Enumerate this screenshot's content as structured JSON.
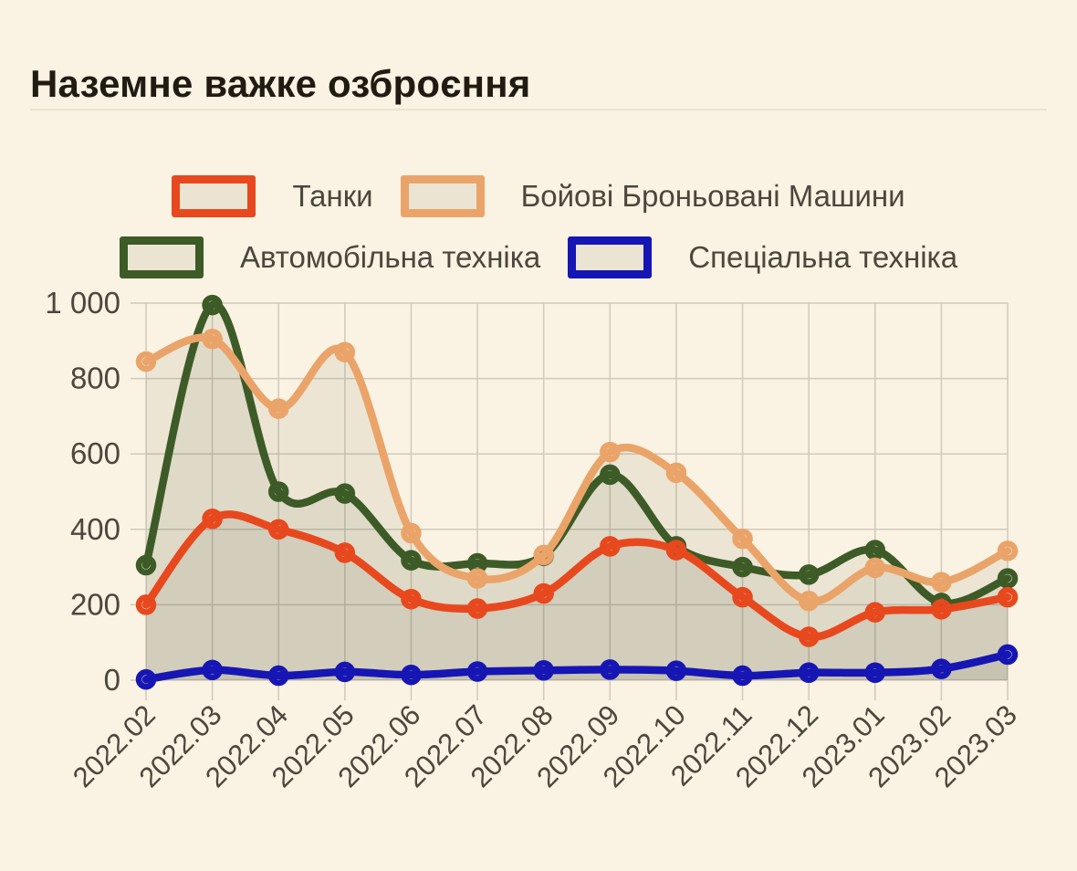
{
  "header": {
    "title": "Наземне важке озброєння"
  },
  "legend": {
    "rows": 2,
    "items_per_row": 2
  },
  "chart_data": {
    "type": "area",
    "title": "Наземне важке озброєння",
    "x": [
      "2022.02",
      "2022.03",
      "2022.04",
      "2022.05",
      "2022.06",
      "2022.07",
      "2022.08",
      "2022.09",
      "2022.10",
      "2022.11",
      "2022.12",
      "2023.01",
      "2023.02",
      "2023.03"
    ],
    "series": [
      {
        "key": "tanks",
        "name": "Танки",
        "color": "#e8481d",
        "values": [
          200,
          428,
          400,
          338,
          215,
          190,
          230,
          355,
          345,
          220,
          115,
          180,
          188,
          220
        ]
      },
      {
        "key": "armored-fighting-vehicles",
        "name": "Бойові Броньовані Машини",
        "color": "#eaa469",
        "values": [
          845,
          905,
          720,
          870,
          390,
          270,
          332,
          605,
          550,
          375,
          210,
          298,
          260,
          343
        ]
      },
      {
        "key": "automotive-vehicles",
        "name": "Автомобільна техніка",
        "color": "#3d5b27",
        "values": [
          305,
          995,
          500,
          495,
          318,
          310,
          330,
          545,
          355,
          300,
          280,
          345,
          205,
          270
        ]
      },
      {
        "key": "special-vehicles",
        "name": "Спеціальна техніка",
        "color": "#1616b4",
        "values": [
          2,
          27,
          12,
          22,
          14,
          23,
          26,
          28,
          25,
          12,
          20,
          20,
          30,
          68
        ]
      }
    ],
    "ylim": [
      0,
      1000
    ],
    "yticks": [
      0,
      200,
      400,
      600,
      800,
      1000
    ],
    "ytick_labels": [
      "0",
      "200",
      "400",
      "600",
      "800",
      "1 000"
    ],
    "grid": true,
    "legend_position": "top",
    "area_fill": "rgba(70,62,40,0.075)",
    "line_z_order": [
      "automotive-vehicles",
      "armored-fighting-vehicles",
      "tanks",
      "special-vehicles"
    ]
  },
  "colors": {
    "background": "#faf2e2",
    "title_text": "#221b12",
    "axis_text": "#4c463c",
    "grid_line": "#d0cabb",
    "divider": "#ebe3d1",
    "legend_swatch_fill": "#ece4d3",
    "legend_label_text": "#4c463c"
  }
}
